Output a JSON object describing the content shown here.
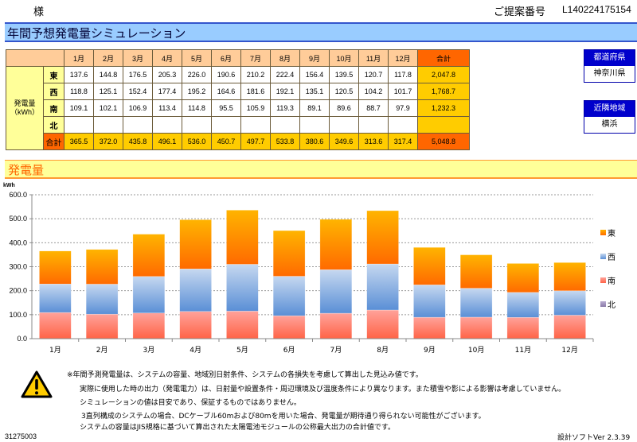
{
  "header": {
    "customer_suffix": "様",
    "proposal_label": "ご提案番号",
    "proposal_number": "L140224175154"
  },
  "title": "年間予想発電量シミュレーション",
  "table": {
    "months": [
      "1月",
      "2月",
      "3月",
      "4月",
      "5月",
      "6月",
      "7月",
      "8月",
      "9月",
      "10月",
      "11月",
      "12月"
    ],
    "total_header": "合計",
    "row_group_label_line1": "発電量",
    "row_group_label_line2": "（kWh）",
    "rows": [
      {
        "direction": "東",
        "values": [
          "137.6",
          "144.8",
          "176.5",
          "205.3",
          "226.0",
          "190.6",
          "210.2",
          "222.4",
          "156.4",
          "139.5",
          "120.7",
          "117.8"
        ],
        "total": "2,047.8"
      },
      {
        "direction": "西",
        "values": [
          "118.8",
          "125.1",
          "152.4",
          "177.4",
          "195.2",
          "164.6",
          "181.6",
          "192.1",
          "135.1",
          "120.5",
          "104.2",
          "101.7"
        ],
        "total": "1,768.7"
      },
      {
        "direction": "南",
        "values": [
          "109.1",
          "102.1",
          "106.9",
          "113.4",
          "114.8",
          "95.5",
          "105.9",
          "119.3",
          "89.1",
          "89.6",
          "88.7",
          "97.9"
        ],
        "total": "1,232.3"
      },
      {
        "direction": "北",
        "values": [
          "",
          "",
          "",
          "",
          "",
          "",
          "",
          "",
          "",
          "",
          "",
          ""
        ],
        "total": ""
      }
    ],
    "total_row": {
      "label": "合計",
      "values": [
        "365.5",
        "372.0",
        "435.8",
        "496.1",
        "536.0",
        "450.7",
        "497.7",
        "533.8",
        "380.6",
        "349.6",
        "313.6",
        "317.4"
      ],
      "total": "5,048.8"
    }
  },
  "prefecture": {
    "label": "都道府県",
    "value": "神奈川県"
  },
  "nearby_area": {
    "label": "近隣地域",
    "value": "横浜"
  },
  "section_title": "発電量",
  "chart_data": {
    "type": "bar",
    "stacked": true,
    "title": "",
    "xlabel": "",
    "ylabel": "kWh",
    "ylim": [
      0,
      600
    ],
    "yticks": [
      "0.0",
      "100.0",
      "200.0",
      "300.0",
      "400.0",
      "500.0",
      "600.0"
    ],
    "grid": true,
    "legend_position": "right",
    "categories": [
      "1月",
      "2月",
      "3月",
      "4月",
      "5月",
      "6月",
      "7月",
      "8月",
      "9月",
      "10月",
      "11月",
      "12月"
    ],
    "series": [
      {
        "name": "南",
        "color": "#ff7f6e",
        "values": [
          109.1,
          102.1,
          106.9,
          113.4,
          114.8,
          95.5,
          105.9,
          119.3,
          89.1,
          89.6,
          88.7,
          97.9
        ]
      },
      {
        "name": "西",
        "color": "#6f9ad8",
        "values": [
          118.8,
          125.1,
          152.4,
          177.4,
          195.2,
          164.6,
          181.6,
          192.1,
          135.1,
          120.5,
          104.2,
          101.7
        ]
      },
      {
        "name": "東",
        "color": "#ff8800",
        "values": [
          137.6,
          144.8,
          176.5,
          205.3,
          226.0,
          190.6,
          210.2,
          222.4,
          156.4,
          139.5,
          120.7,
          117.8
        ]
      },
      {
        "name": "北",
        "color": "#9a8ab8",
        "values": [
          0,
          0,
          0,
          0,
          0,
          0,
          0,
          0,
          0,
          0,
          0,
          0
        ]
      }
    ],
    "legend_order": [
      "東",
      "西",
      "南",
      "北"
    ]
  },
  "notes": [
    "※年間予測発電量は、システムの容量、地域別日射条件、システムの各損失を考慮して算出した見込み値です。",
    "実際に使用した時の出力（発電電力）は、日射量や設置条件・周辺環境及び温度条件により異なります。また積雪や影による影響は考慮していません。",
    "シミュレーションの値は目安であり、保証するものではありません。",
    "3直列構成のシステムの場合、DCケーブル60mおよび80mを用いた場合、発電量が期待通り得られない可能性がございます。",
    "システムの容量はJIS規格に基づいて算出された太陽電池モジュールの公称最大出力の合計値です。"
  ],
  "footer": {
    "code": "31275003",
    "version": "設計ソフトVer 2.3.39"
  },
  "icons": {
    "warning": "warning-triangle-icon"
  }
}
